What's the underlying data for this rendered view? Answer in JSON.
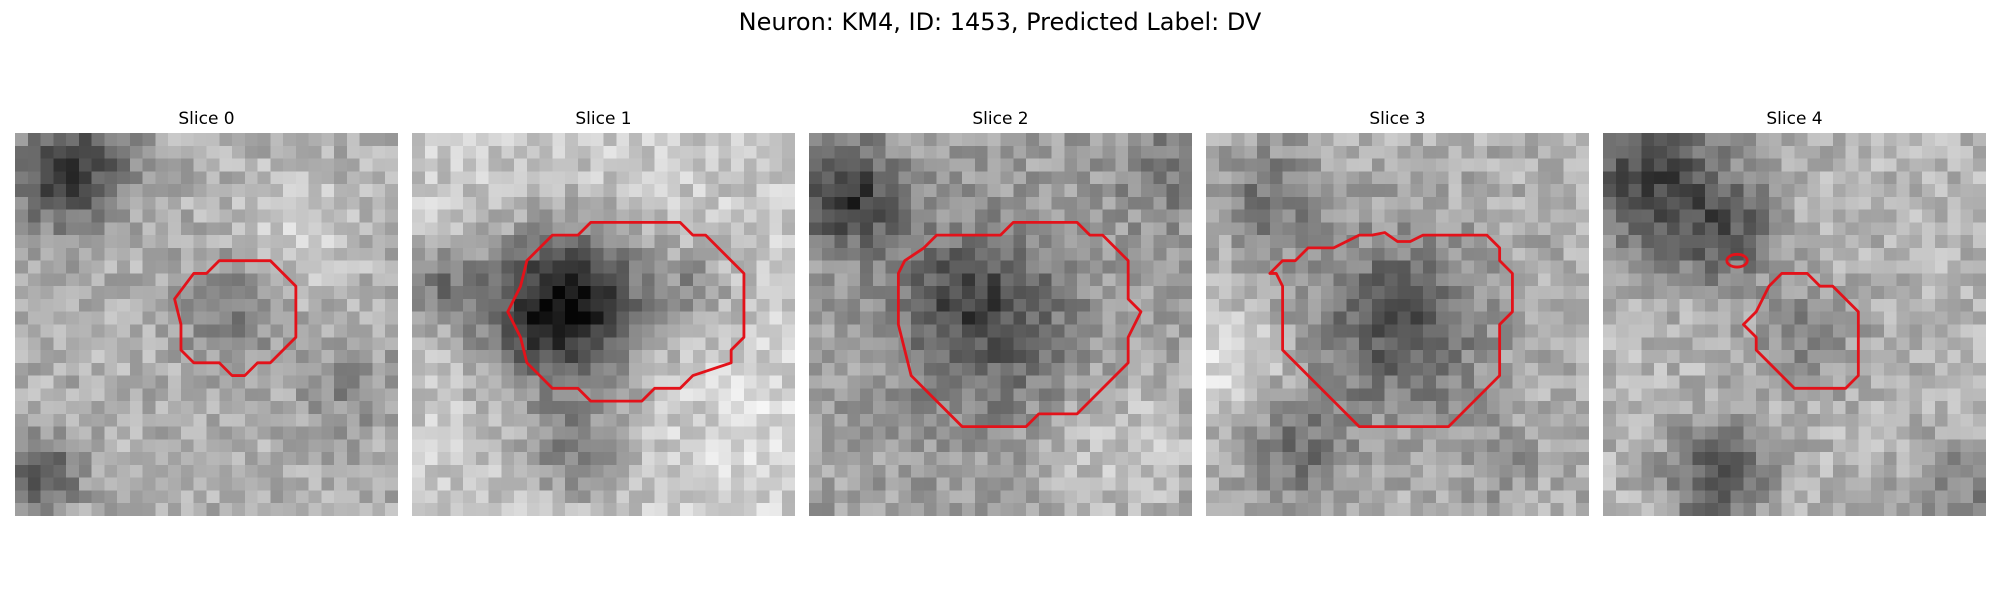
{
  "title": "Neuron: KM4, ID: 1453, Predicted Label: DV",
  "contour_color": "#e3121a",
  "colormap": "gray",
  "panels": [
    {
      "title": "Slice 0"
    },
    {
      "title": "Slice 1"
    },
    {
      "title": "Slice 2"
    },
    {
      "title": "Slice 3"
    },
    {
      "title": "Slice 4"
    }
  ]
}
